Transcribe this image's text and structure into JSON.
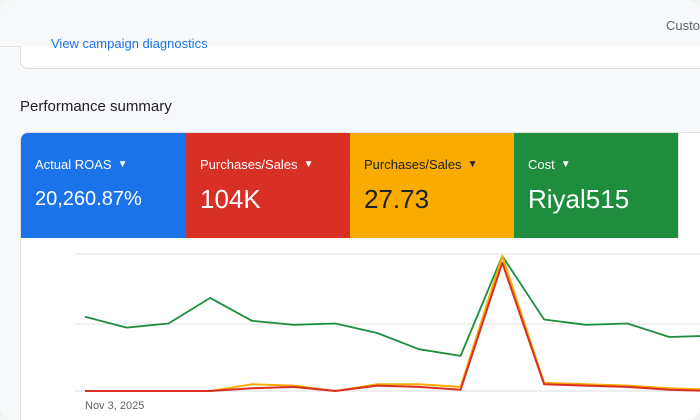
{
  "header": {
    "right_text": "Custo"
  },
  "prev_section": {
    "link_text": "View campaign diagnostics"
  },
  "section": {
    "title": "Performance summary"
  },
  "metrics": [
    {
      "label": "Actual ROAS",
      "value": "20,260.87%",
      "color": "#1a73e8"
    },
    {
      "label": "Purchases/Sales",
      "value": "104K",
      "color": "#d93025"
    },
    {
      "label": "Purchases/Sales",
      "value": "27.73",
      "color": "#f9ab00"
    },
    {
      "label": "Cost",
      "value": "Riyal515",
      "color": "#1e8e3e"
    }
  ],
  "chart_data": {
    "type": "line",
    "x_first_label": "Nov 3, 2025",
    "series": [
      {
        "color": "#1e8e3e",
        "values": [
          0.55,
          0.47,
          0.5,
          0.69,
          0.52,
          0.49,
          0.5,
          0.43,
          0.31,
          0.26,
          1.0,
          0.53,
          0.49,
          0.5,
          0.4,
          0.41
        ]
      },
      {
        "color": "#f9ab00",
        "values": [
          0.0,
          0.0,
          0.0,
          0.0,
          0.05,
          0.04,
          0.0,
          0.05,
          0.05,
          0.03,
          1.0,
          0.06,
          0.05,
          0.04,
          0.02,
          0.01
        ]
      },
      {
        "color": "#d93025",
        "values": [
          0.0,
          0.0,
          0.0,
          0.0,
          0.02,
          0.03,
          0.0,
          0.04,
          0.03,
          0.01,
          0.95,
          0.05,
          0.04,
          0.03,
          0.01,
          0.0
        ]
      }
    ]
  }
}
